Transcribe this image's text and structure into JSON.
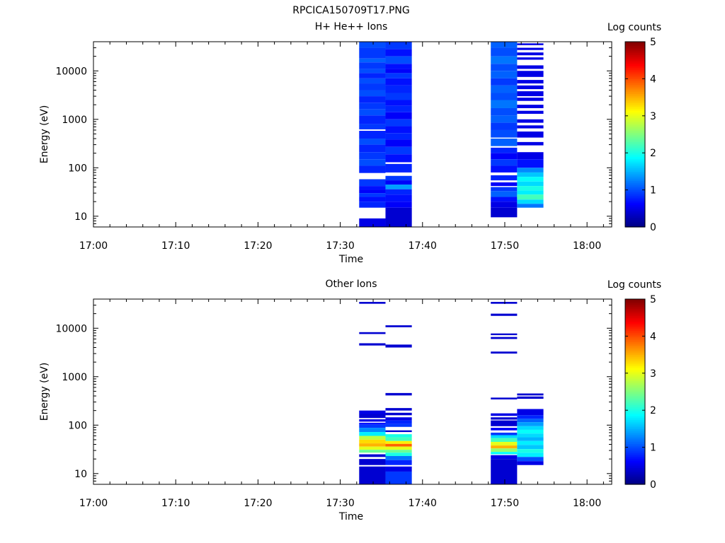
{
  "figure_title": "RPCICA150709T17.PNG",
  "chart_data": [
    {
      "type": "heatmap",
      "title": "H+ He++ Ions",
      "xlabel": "Time",
      "ylabel": "Energy (eV)",
      "x_ticks": [
        "17:00",
        "17:10",
        "17:20",
        "17:30",
        "17:40",
        "17:50",
        "18:00"
      ],
      "x_range_minutes": [
        0,
        63
      ],
      "y_scale": "log",
      "y_range": [
        6,
        40000
      ],
      "y_ticks": [
        "10",
        "100",
        "1000",
        "10000"
      ],
      "colorbar": {
        "label": "Log counts",
        "ticks": [
          "0",
          "1",
          "2",
          "3",
          "4",
          "5"
        ],
        "range": [
          0,
          5
        ],
        "colormap": "jet"
      },
      "columns": [
        {
          "t_start": 32.3,
          "t_end": 35.5,
          "cells": [
            [
              30000,
              40000,
              1.0
            ],
            [
              18000,
              30000,
              0.9
            ],
            [
              15000,
              18000,
              1.1
            ],
            [
              11000,
              15000,
              0.9
            ],
            [
              9000,
              11000,
              1.0
            ],
            [
              7000,
              9000,
              0.8
            ],
            [
              5500,
              7000,
              1.0
            ],
            [
              4000,
              5500,
              0.9
            ],
            [
              3000,
              4000,
              1.0
            ],
            [
              2200,
              3000,
              0.8
            ],
            [
              1600,
              2200,
              0.9
            ],
            [
              1200,
              1600,
              1.0
            ],
            [
              800,
              1200,
              0.8
            ],
            [
              620,
              800,
              0.9
            ],
            [
              400,
              580,
              0.8
            ],
            [
              300,
              400,
              1.0
            ],
            [
              210,
              300,
              0.8
            ],
            [
              150,
              210,
              0.9
            ],
            [
              110,
              150,
              1.0
            ],
            [
              78,
              110,
              0.8
            ],
            [
              42,
              58,
              0.9
            ],
            [
              35,
              42,
              0.7
            ],
            [
              30,
              35,
              0.6
            ],
            [
              25,
              30,
              0.9
            ],
            [
              20,
              25,
              0.7
            ],
            [
              15,
              20,
              0.8
            ],
            [
              6,
              9,
              0.5
            ]
          ]
        },
        {
          "t_start": 35.5,
          "t_end": 38.7,
          "cells": [
            [
              28000,
              40000,
              0.9
            ],
            [
              20000,
              28000,
              0.7
            ],
            [
              14000,
              20000,
              1.0
            ],
            [
              11000,
              14000,
              0.7
            ],
            [
              9000,
              11000,
              0.6
            ],
            [
              7000,
              9000,
              0.9
            ],
            [
              5000,
              7000,
              0.7
            ],
            [
              3500,
              5000,
              0.8
            ],
            [
              2500,
              3500,
              0.9
            ],
            [
              1900,
              2500,
              0.7
            ],
            [
              1400,
              1900,
              0.8
            ],
            [
              1000,
              1400,
              0.6
            ],
            [
              720,
              1000,
              0.9
            ],
            [
              520,
              720,
              0.7
            ],
            [
              380,
              520,
              0.8
            ],
            [
              270,
              380,
              0.6
            ],
            [
              190,
              270,
              0.9
            ],
            [
              130,
              190,
              0.7
            ],
            [
              80,
              120,
              0.8
            ],
            [
              55,
              68,
              0.9
            ],
            [
              45,
              55,
              0.6
            ],
            [
              36,
              45,
              1.4
            ],
            [
              28,
              36,
              0.8
            ],
            [
              20,
              28,
              0.7
            ],
            [
              15,
              20,
              0.6
            ],
            [
              6,
              15,
              0.4
            ]
          ]
        },
        {
          "t_start": 48.3,
          "t_end": 51.5,
          "cells": [
            [
              30000,
              40000,
              1.1
            ],
            [
              20000,
              30000,
              1.0
            ],
            [
              14000,
              20000,
              1.2
            ],
            [
              10000,
              14000,
              1.0
            ],
            [
              7000,
              10000,
              1.1
            ],
            [
              5000,
              7000,
              0.9
            ],
            [
              3500,
              5000,
              1.1
            ],
            [
              2500,
              3500,
              1.0
            ],
            [
              1700,
              2500,
              1.2
            ],
            [
              1200,
              1700,
              1.0
            ],
            [
              850,
              1200,
              1.1
            ],
            [
              600,
              850,
              0.9
            ],
            [
              420,
              600,
              1.0
            ],
            [
              280,
              400,
              1.1
            ],
            [
              200,
              260,
              0.8
            ],
            [
              150,
              200,
              0.6
            ],
            [
              110,
              150,
              0.9
            ],
            [
              80,
              110,
              0.7
            ],
            [
              55,
              70,
              0.8
            ],
            [
              42,
              50,
              0.6
            ],
            [
              33,
              40,
              0.9
            ],
            [
              25,
              33,
              1.1
            ],
            [
              20,
              25,
              0.7
            ],
            [
              15,
              20,
              0.5
            ],
            [
              9.5,
              15,
              0.4
            ]
          ]
        },
        {
          "t_start": 51.5,
          "t_end": 54.7,
          "cells": [
            [
              34000,
              37000,
              0.5
            ],
            [
              27000,
              30000,
              0.5
            ],
            [
              21000,
              24000,
              0.5
            ],
            [
              17000,
              19000,
              0.5
            ],
            [
              11000,
              13000,
              0.5
            ],
            [
              7500,
              10000,
              0.5
            ],
            [
              5500,
              6500,
              0.5
            ],
            [
              4200,
              5000,
              0.5
            ],
            [
              3000,
              3800,
              0.5
            ],
            [
              2400,
              2800,
              0.5
            ],
            [
              1700,
              2000,
              0.5
            ],
            [
              1300,
              1500,
              0.5
            ],
            [
              850,
              1000,
              0.5
            ],
            [
              650,
              750,
              0.5
            ],
            [
              420,
              560,
              0.5
            ],
            [
              290,
              340,
              0.5
            ],
            [
              150,
              210,
              0.5
            ],
            [
              100,
              150,
              0.7
            ],
            [
              80,
              100,
              1.3
            ],
            [
              65,
              80,
              1.6
            ],
            [
              52,
              65,
              1.9
            ],
            [
              42,
              52,
              1.7
            ],
            [
              34,
              42,
              2.0
            ],
            [
              28,
              34,
              1.8
            ],
            [
              22,
              28,
              2.2
            ],
            [
              18,
              22,
              1.7
            ],
            [
              15,
              18,
              1.2
            ]
          ]
        }
      ]
    },
    {
      "type": "heatmap",
      "title": "Other Ions",
      "xlabel": "Time",
      "ylabel": "Energy (eV)",
      "x_ticks": [
        "17:00",
        "17:10",
        "17:20",
        "17:30",
        "17:40",
        "17:50",
        "18:00"
      ],
      "x_range_minutes": [
        0,
        63
      ],
      "y_scale": "log",
      "y_range": [
        6,
        40000
      ],
      "y_ticks": [
        "10",
        "100",
        "1000",
        "10000"
      ],
      "colorbar": {
        "label": "Log counts",
        "ticks": [
          "0",
          "1",
          "2",
          "3",
          "4",
          "5"
        ],
        "range": [
          0,
          5
        ],
        "colormap": "jet"
      },
      "columns": [
        {
          "t_start": 32.3,
          "t_end": 35.5,
          "cells": [
            [
              32000,
              35000,
              0.4
            ],
            [
              7600,
              8300,
              0.4
            ],
            [
              4400,
              4900,
              0.4
            ],
            [
              170,
              200,
              0.5
            ],
            [
              140,
              170,
              0.4
            ],
            [
              118,
              132,
              0.5
            ],
            [
              102,
              112,
              0.7
            ],
            [
              88,
              102,
              0.9
            ],
            [
              72,
              88,
              1.3
            ],
            [
              60,
              72,
              1.8
            ],
            [
              50,
              60,
              2.8
            ],
            [
              42,
              50,
              3.3
            ],
            [
              36,
              42,
              3.5
            ],
            [
              31,
              36,
              3.0
            ],
            [
              27,
              31,
              2.4
            ],
            [
              22,
              25,
              0.4
            ],
            [
              15,
              20,
              0.4
            ],
            [
              6,
              14,
              0.4
            ]
          ]
        },
        {
          "t_start": 35.5,
          "t_end": 38.7,
          "cells": [
            [
              10500,
              11500,
              0.4
            ],
            [
              4000,
              4600,
              0.4
            ],
            [
              410,
              460,
              0.4
            ],
            [
              200,
              225,
              0.4
            ],
            [
              160,
              180,
              0.4
            ],
            [
              125,
              145,
              0.5
            ],
            [
              105,
              125,
              0.8
            ],
            [
              92,
              105,
              0.9
            ],
            [
              72,
              78,
              0.4
            ],
            [
              56,
              65,
              2.0
            ],
            [
              47,
              56,
              2.2
            ],
            [
              41,
              47,
              3.2
            ],
            [
              36,
              41,
              3.9
            ],
            [
              31,
              36,
              3.0
            ],
            [
              27,
              31,
              2.4
            ],
            [
              23,
              27,
              2.0
            ],
            [
              19,
              23,
              1.2
            ],
            [
              15,
              19,
              0.8
            ],
            [
              11,
              14,
              0.5
            ],
            [
              6,
              11,
              0.9
            ]
          ]
        },
        {
          "t_start": 48.3,
          "t_end": 51.5,
          "cells": [
            [
              32000,
              35000,
              0.4
            ],
            [
              18000,
              20000,
              0.4
            ],
            [
              7200,
              7800,
              0.4
            ],
            [
              6000,
              6600,
              0.4
            ],
            [
              3000,
              3300,
              0.4
            ],
            [
              340,
              370,
              0.4
            ],
            [
              155,
              175,
              0.5
            ],
            [
              130,
              145,
              0.4
            ],
            [
              95,
              125,
              0.4
            ],
            [
              78,
              88,
              0.6
            ],
            [
              62,
              70,
              0.9
            ],
            [
              54,
              62,
              1.7
            ],
            [
              45,
              54,
              2.2
            ],
            [
              38,
              45,
              3.0
            ],
            [
              33,
              38,
              3.5
            ],
            [
              28,
              33,
              2.6
            ],
            [
              25,
              28,
              1.9
            ],
            [
              20,
              24,
              0.5
            ],
            [
              6,
              20,
              0.4
            ]
          ]
        },
        {
          "t_start": 51.5,
          "t_end": 54.7,
          "cells": [
            [
              410,
              450,
              0.4
            ],
            [
              350,
              390,
              0.4
            ],
            [
              160,
              215,
              0.5
            ],
            [
              135,
              160,
              0.8
            ],
            [
              115,
              135,
              1.1
            ],
            [
              95,
              115,
              1.4
            ],
            [
              80,
              95,
              1.7
            ],
            [
              67,
              80,
              1.9
            ],
            [
              56,
              67,
              1.7
            ],
            [
              47,
              56,
              1.5
            ],
            [
              39,
              47,
              1.8
            ],
            [
              32,
              39,
              1.6
            ],
            [
              27,
              32,
              2.0
            ],
            [
              22,
              27,
              1.8
            ],
            [
              18,
              22,
              1.0
            ],
            [
              15,
              18,
              0.5
            ]
          ]
        }
      ]
    }
  ]
}
